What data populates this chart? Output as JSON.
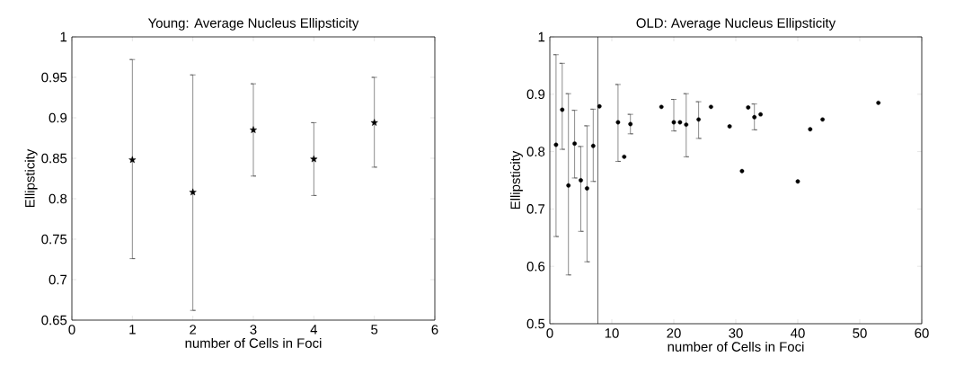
{
  "chart_data": [
    {
      "type": "scatter",
      "title": "Young: Average Nucleus Ellipsticity",
      "xlabel": "number of Cells in Foci",
      "ylabel": "Ellipsticity",
      "marker": "star",
      "color": "#000000",
      "x": [
        1,
        2,
        3,
        4,
        5
      ],
      "values": [
        0.848,
        0.808,
        0.885,
        0.849,
        0.894
      ],
      "errors": [
        [
          0.726,
          0.972
        ],
        [
          0.662,
          0.953
        ],
        [
          0.828,
          0.942
        ],
        [
          0.804,
          0.894
        ],
        [
          0.839,
          0.95
        ]
      ],
      "xlim": [
        0,
        6
      ],
      "xticks": [
        0,
        1,
        2,
        3,
        4,
        5,
        6
      ],
      "ylim": [
        0.65,
        1
      ],
      "yticks": [
        0.65,
        0.7,
        0.75,
        0.8,
        0.85,
        0.9,
        0.95,
        1
      ]
    },
    {
      "type": "scatter",
      "title": "OLD: Average Nucleus Ellipsticity",
      "xlabel": "number of Cells in Foci",
      "ylabel": "Ellipsticity",
      "marker": "circle",
      "color": "#000000",
      "x": [
        1,
        2,
        3,
        4,
        5,
        6,
        7,
        8,
        11,
        12,
        13,
        18,
        20,
        21,
        22,
        24,
        26,
        29,
        31,
        32,
        33,
        34,
        40,
        42,
        44,
        53
      ],
      "values": [
        0.812,
        0.873,
        0.741,
        0.814,
        0.75,
        0.736,
        0.81,
        0.879,
        0.851,
        0.791,
        0.848,
        0.878,
        0.851,
        0.851,
        0.847,
        0.856,
        0.878,
        0.844,
        0.766,
        0.877,
        0.86,
        0.865,
        0.748,
        0.839,
        0.856,
        0.885
      ],
      "errors": [
        [
          0.652,
          0.969
        ],
        [
          0.804,
          0.954
        ],
        [
          0.585,
          0.901
        ],
        [
          0.754,
          0.872
        ],
        [
          0.661,
          0.809
        ],
        [
          0.608,
          0.845
        ],
        [
          0.748,
          0.874
        ],
        null,
        [
          0.783,
          0.917
        ],
        null,
        [
          0.831,
          0.865
        ],
        null,
        [
          0.836,
          0.891
        ],
        null,
        [
          0.791,
          0.901
        ],
        [
          0.823,
          0.887
        ],
        null,
        null,
        null,
        null,
        [
          0.838,
          0.883
        ],
        null,
        null,
        null,
        null,
        null
      ],
      "ref_lines": [
        {
          "axis": "x",
          "value": 7.75
        }
      ],
      "xlim": [
        0,
        60
      ],
      "xticks": [
        0,
        10,
        20,
        30,
        40,
        50,
        60
      ],
      "ylim": [
        0.5,
        1
      ],
      "yticks": [
        0.5,
        0.6,
        0.7,
        0.8,
        0.9,
        1
      ]
    }
  ]
}
